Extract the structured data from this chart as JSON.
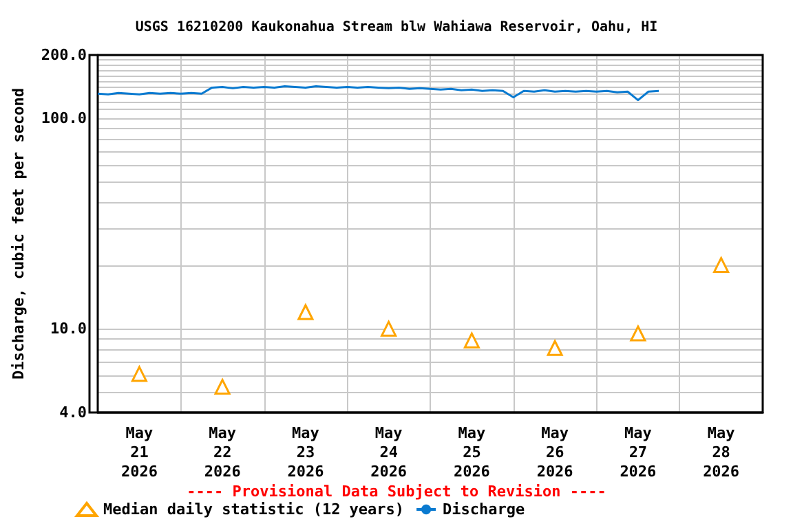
{
  "chart_data": {
    "type": "scatter",
    "title": "USGS 16210200 Kaukonahua Stream blw Wahiawa Reservoir, Oahu, HI",
    "ylabel": "Discharge, cubic feet per second",
    "annotations": [
      "---- Provisional Data Subject to Revision ----"
    ],
    "log": "y",
    "grid": true,
    "legend": "bottom left",
    "xlim": [
      "2026-05-21T00:00",
      "2026-05-29T00:00"
    ],
    "xticks": [
      {
        "value": "2026-05-21T12:00",
        "label": "May\n21\n2026"
      },
      {
        "value": "2026-05-22T00:00",
        "label": null
      },
      {
        "value": "2026-05-22T12:00",
        "label": "May\n22\n2026"
      },
      {
        "value": "2026-05-23T00:00",
        "label": null
      },
      {
        "value": "2026-05-23T12:00",
        "label": "May\n23\n2026"
      },
      {
        "value": "2026-05-24T00:00",
        "label": null
      },
      {
        "value": "2026-05-24T12:00",
        "label": "May\n24\n2026"
      },
      {
        "value": "2026-05-25T00:00",
        "label": null
      },
      {
        "value": "2026-05-25T12:00",
        "label": "May\n25\n2026"
      },
      {
        "value": "2026-05-26T00:00",
        "label": null
      },
      {
        "value": "2026-05-26T12:00",
        "label": "May\n26\n2026"
      },
      {
        "value": "2026-05-27T00:00",
        "label": null
      },
      {
        "value": "2026-05-27T12:00",
        "label": "May\n27\n2026"
      },
      {
        "value": "2026-05-28T00:00",
        "label": null
      },
      {
        "value": "2026-05-28T12:00",
        "label": "May\n28\n2026"
      }
    ],
    "ylim": [
      4,
      200
    ],
    "yticks": [
      {
        "value": 4,
        "label": "4.0"
      },
      {
        "value": 5,
        "label": null
      },
      {
        "value": 6,
        "label": null
      },
      {
        "value": 7,
        "label": null
      },
      {
        "value": 8,
        "label": null
      },
      {
        "value": 9,
        "label": null
      },
      {
        "value": 10,
        "label": "10.0"
      },
      {
        "value": 20,
        "label": null
      },
      {
        "value": 30,
        "label": null
      },
      {
        "value": 40,
        "label": null
      },
      {
        "value": 50,
        "label": null
      },
      {
        "value": 60,
        "label": null
      },
      {
        "value": 70,
        "label": null
      },
      {
        "value": 80,
        "label": null
      },
      {
        "value": 90,
        "label": null
      },
      {
        "value": 100,
        "label": "100.0"
      },
      {
        "value": 110,
        "label": null
      },
      {
        "value": 120,
        "label": null
      },
      {
        "value": 130,
        "label": null
      },
      {
        "value": 140,
        "label": null
      },
      {
        "value": 150,
        "label": null
      },
      {
        "value": 160,
        "label": null
      },
      {
        "value": 170,
        "label": null
      },
      {
        "value": 180,
        "label": null
      },
      {
        "value": 190,
        "label": null
      },
      {
        "value": 200,
        "label": "200.0"
      }
    ],
    "series": [
      {
        "name": "Median daily statistic (12 years)",
        "marker": "triangle",
        "color": "#ffa500",
        "x": [
          "2026-05-21T12:00",
          "2026-05-22T12:00",
          "2026-05-23T12:00",
          "2026-05-24T12:00",
          "2026-05-25T12:00",
          "2026-05-26T12:00",
          "2026-05-27T12:00",
          "2026-05-28T12:00"
        ],
        "values": [
          6.1,
          5.3,
          12.0,
          10.0,
          8.8,
          8.1,
          9.5,
          20.1
        ]
      },
      {
        "name": "Discharge",
        "type": "line",
        "marker": "none",
        "line_style": "solid",
        "color": "#0a7ad0",
        "x": [
          "2026-05-21T00:00",
          "2026-05-21T03:00",
          "2026-05-21T06:00",
          "2026-05-21T09:00",
          "2026-05-21T12:00",
          "2026-05-21T15:00",
          "2026-05-21T18:00",
          "2026-05-21T21:00",
          "2026-05-22T00:00",
          "2026-05-22T03:00",
          "2026-05-22T06:00",
          "2026-05-22T09:00",
          "2026-05-22T12:00",
          "2026-05-22T15:00",
          "2026-05-22T18:00",
          "2026-05-22T21:00",
          "2026-05-23T00:00",
          "2026-05-23T03:00",
          "2026-05-23T06:00",
          "2026-05-23T09:00",
          "2026-05-23T12:00",
          "2026-05-23T15:00",
          "2026-05-23T18:00",
          "2026-05-23T21:00",
          "2026-05-24T00:00",
          "2026-05-24T03:00",
          "2026-05-24T06:00",
          "2026-05-24T09:00",
          "2026-05-24T12:00",
          "2026-05-24T15:00",
          "2026-05-24T18:00",
          "2026-05-24T21:00",
          "2026-05-25T00:00",
          "2026-05-25T03:00",
          "2026-05-25T06:00",
          "2026-05-25T09:00",
          "2026-05-25T12:00",
          "2026-05-25T15:00",
          "2026-05-25T18:00",
          "2026-05-25T21:00",
          "2026-05-26T00:00",
          "2026-05-26T03:00",
          "2026-05-26T06:00",
          "2026-05-26T09:00",
          "2026-05-26T12:00",
          "2026-05-26T15:00",
          "2026-05-26T18:00",
          "2026-05-26T21:00",
          "2026-05-27T00:00",
          "2026-05-27T03:00",
          "2026-05-27T06:00",
          "2026-05-27T09:00",
          "2026-05-27T12:00",
          "2026-05-27T15:00",
          "2026-05-27T18:00"
        ],
        "values": [
          131,
          130,
          132,
          131,
          130,
          132,
          131,
          132,
          131,
          132,
          131,
          140,
          141,
          139,
          141,
          140,
          141,
          140,
          142,
          141,
          140,
          142,
          141,
          140,
          141,
          140,
          141,
          140,
          139,
          140,
          138,
          139,
          138,
          137,
          138,
          136,
          137,
          135,
          136,
          135,
          126,
          135,
          134,
          136,
          134,
          135,
          134,
          135,
          134,
          135,
          133,
          134,
          122,
          134,
          135
        ]
      }
    ]
  }
}
